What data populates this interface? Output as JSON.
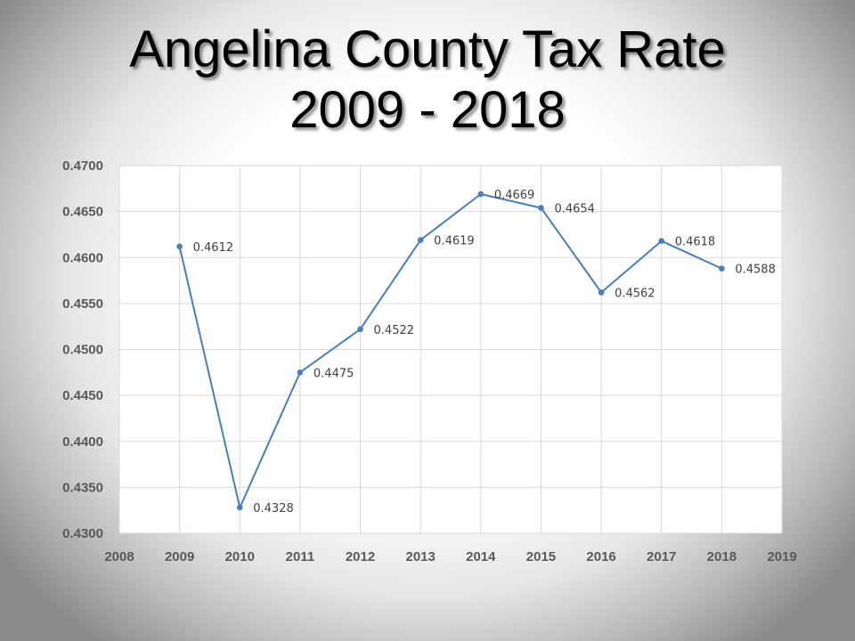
{
  "title": {
    "line1": "Angelina County Tax Rate",
    "line2": "2009 - 2018"
  },
  "colors": {
    "series": "#4a7ebb",
    "grid": "#d9d9d9",
    "tick": "#595959"
  },
  "chart_data": {
    "type": "scatter",
    "mode": "lines+markers",
    "title": "Angelina County Tax Rate 2009 - 2018",
    "xlabel": "",
    "ylabel": "",
    "xlim": [
      2008,
      2019
    ],
    "ylim": [
      0.43,
      0.47
    ],
    "xticks": [
      "2008",
      "2009",
      "2010",
      "2011",
      "2012",
      "2013",
      "2014",
      "2015",
      "2016",
      "2017",
      "2018",
      "2019"
    ],
    "yticks": [
      "0.4300",
      "0.4350",
      "0.4400",
      "0.4450",
      "0.4500",
      "0.4550",
      "0.4600",
      "0.4650",
      "0.4700"
    ],
    "grid": true,
    "legend": "none",
    "series": [
      {
        "x": [
          2009,
          2010,
          2011,
          2012,
          2013,
          2014,
          2015,
          2016,
          2017,
          2018
        ],
        "y": [
          0.4612,
          0.4328,
          0.4475,
          0.4522,
          0.4619,
          0.4669,
          0.4654,
          0.4562,
          0.4618,
          0.4588
        ],
        "labels": [
          "0.4612",
          "0.4328",
          "0.4475",
          "0.4522",
          "0.4619",
          "0.4669",
          "0.4654",
          "0.4562",
          "0.4618",
          "0.4588"
        ]
      }
    ]
  }
}
